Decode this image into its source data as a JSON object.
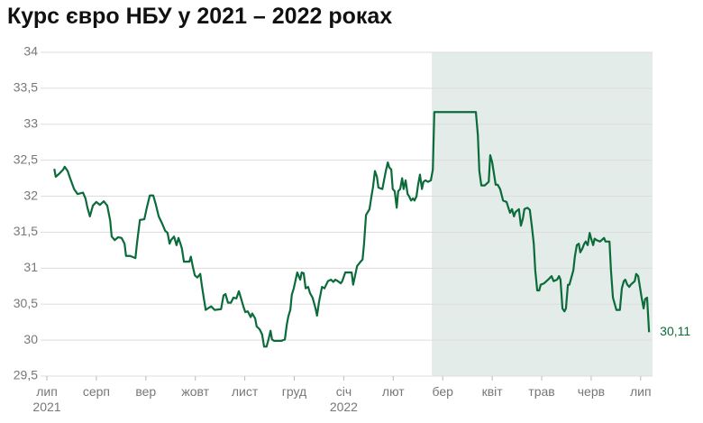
{
  "chart_data": {
    "type": "line",
    "title": "Курс євро НБУ у 2021 – 2022 роках",
    "color": "#0b6b3a",
    "grid": true,
    "shaded_xrange": [
      7.78,
      12.24
    ],
    "shade_color": "#e3ece8",
    "end_label": "30,11",
    "xlim": [
      0,
      12.24
    ],
    "ylim": [
      29.5,
      34
    ],
    "yticks": [
      {
        "value": 29.5,
        "label": "29,5"
      },
      30,
      {
        "value": 30.5,
        "label": "30,5"
      },
      31,
      {
        "value": 31.5,
        "label": "31,5"
      },
      32,
      {
        "value": 32.5,
        "label": "32,5"
      },
      33,
      {
        "value": 33.5,
        "label": "33,5"
      },
      34
    ],
    "xticks": [
      {
        "value": 0,
        "label": "лип 2021"
      },
      {
        "value": 1,
        "label": "серп"
      },
      {
        "value": 2,
        "label": "вер"
      },
      {
        "value": 3,
        "label": "жовт"
      },
      {
        "value": 4,
        "label": "лист"
      },
      {
        "value": 5,
        "label": "груд"
      },
      {
        "value": 6,
        "label": "січ 2022"
      },
      {
        "value": 7,
        "label": "лют"
      },
      {
        "value": 8,
        "label": "бер"
      },
      {
        "value": 9,
        "label": "квіт"
      },
      {
        "value": 10,
        "label": "трав"
      },
      {
        "value": 11,
        "label": "черв"
      },
      {
        "value": 12,
        "label": "лип"
      }
    ],
    "x": [
      0.15,
      0.18,
      0.26,
      0.33,
      0.36,
      0.42,
      0.47,
      0.55,
      0.62,
      0.73,
      0.78,
      0.82,
      0.87,
      0.93,
      1.0,
      1.07,
      1.15,
      1.22,
      1.28,
      1.31,
      1.37,
      1.44,
      1.51,
      1.57,
      1.6,
      1.68,
      1.79,
      1.82,
      1.88,
      1.97,
      2.02,
      2.08,
      2.15,
      2.2,
      2.26,
      2.33,
      2.39,
      2.44,
      2.48,
      2.51,
      2.57,
      2.62,
      2.66,
      2.7,
      2.73,
      2.77,
      2.88,
      2.91,
      2.95,
      2.99,
      3.04,
      3.1,
      3.13,
      3.17,
      3.21,
      3.32,
      3.39,
      3.52,
      3.57,
      3.61,
      3.66,
      3.72,
      3.77,
      3.83,
      3.88,
      3.92,
      3.97,
      4.01,
      4.06,
      4.12,
      4.15,
      4.21,
      4.24,
      4.3,
      4.35,
      4.39,
      4.44,
      4.48,
      4.52,
      4.55,
      4.59,
      4.74,
      4.81,
      4.85,
      4.88,
      4.92,
      4.95,
      4.99,
      5.06,
      5.12,
      5.15,
      5.19,
      5.23,
      5.28,
      5.32,
      5.37,
      5.43,
      5.46,
      5.5,
      5.56,
      5.61,
      5.68,
      5.74,
      5.79,
      5.83,
      5.88,
      5.94,
      5.97,
      6.03,
      6.16,
      6.19,
      6.27,
      6.34,
      6.38,
      6.41,
      6.45,
      6.52,
      6.56,
      6.59,
      6.63,
      6.67,
      6.7,
      6.78,
      6.85,
      6.89,
      6.92,
      6.96,
      6.99,
      7.03,
      7.07,
      7.1,
      7.14,
      7.18,
      7.21,
      7.25,
      7.29,
      7.32,
      7.36,
      7.4,
      7.43,
      7.47,
      7.5,
      7.54,
      7.58,
      7.61,
      7.65,
      7.7,
      7.76,
      7.8,
      7.83,
      8.67,
      8.71,
      8.74,
      8.78,
      8.85,
      8.93,
      8.96,
      9.0,
      9.07,
      9.11,
      9.16,
      9.22,
      9.29,
      9.36,
      9.4,
      9.44,
      9.47,
      9.54,
      9.58,
      9.62,
      9.65,
      9.71,
      9.76,
      9.8,
      9.84,
      9.87,
      9.91,
      9.95,
      9.98,
      10.05,
      10.13,
      10.2,
      10.24,
      10.31,
      10.35,
      10.38,
      10.42,
      10.46,
      10.49,
      10.53,
      10.56,
      10.6,
      10.64,
      10.67,
      10.71,
      10.75,
      10.78,
      10.82,
      10.86,
      10.89,
      10.93,
      10.97,
      11.0,
      11.04,
      11.07,
      11.11,
      11.18,
      11.26,
      11.29,
      11.37,
      11.4,
      11.44,
      11.51,
      11.58,
      11.62,
      11.66,
      11.69,
      11.73,
      11.77,
      11.8,
      11.88,
      11.91,
      11.95,
      11.99,
      12.02,
      12.06,
      12.09,
      12.13,
      12.17
    ],
    "values": [
      32.38,
      32.27,
      32.32,
      32.37,
      32.41,
      32.35,
      32.25,
      32.1,
      32.03,
      32.05,
      31.97,
      31.84,
      31.72,
      31.87,
      31.92,
      31.88,
      31.93,
      31.87,
      31.66,
      31.44,
      31.39,
      31.43,
      31.42,
      31.34,
      31.17,
      31.17,
      31.14,
      31.34,
      31.67,
      31.68,
      31.84,
      32.01,
      32.01,
      31.89,
      31.72,
      31.62,
      31.52,
      31.49,
      31.34,
      31.39,
      31.44,
      31.32,
      31.42,
      31.34,
      31.27,
      31.09,
      31.09,
      31.16,
      31.02,
      30.9,
      30.87,
      30.92,
      30.77,
      30.59,
      30.42,
      30.47,
      30.42,
      30.43,
      30.62,
      30.64,
      30.52,
      30.52,
      30.59,
      30.58,
      30.68,
      30.59,
      30.47,
      30.39,
      30.4,
      30.32,
      30.37,
      30.3,
      30.19,
      30.15,
      30.08,
      29.91,
      29.91,
      30.01,
      30.13,
      30.01,
      29.99,
      29.99,
      30.01,
      30.22,
      30.33,
      30.42,
      30.63,
      30.72,
      30.94,
      30.84,
      30.94,
      30.93,
      30.72,
      30.74,
      30.65,
      30.59,
      30.44,
      30.34,
      30.53,
      30.74,
      30.72,
      30.82,
      30.84,
      30.81,
      30.84,
      30.82,
      30.79,
      30.82,
      30.94,
      30.94,
      30.77,
      31.03,
      31.09,
      31.12,
      31.34,
      31.74,
      31.82,
      32.0,
      32.12,
      32.35,
      32.27,
      32.12,
      32.1,
      32.35,
      32.47,
      32.4,
      32.37,
      32.1,
      32.07,
      31.84,
      32.07,
      32.1,
      32.25,
      32.1,
      32.22,
      32.03,
      32.0,
      31.94,
      31.97,
      31.94,
      32.0,
      32.15,
      32.3,
      32.1,
      32.2,
      32.22,
      32.2,
      32.22,
      32.37,
      33.17,
      33.17,
      32.85,
      32.35,
      32.15,
      32.15,
      32.2,
      32.57,
      32.47,
      32.16,
      32.16,
      32.1,
      31.94,
      31.92,
      31.77,
      31.82,
      31.72,
      31.78,
      31.82,
      31.59,
      31.69,
      31.82,
      31.84,
      31.81,
      31.59,
      31.34,
      30.97,
      30.69,
      30.69,
      30.77,
      30.79,
      30.84,
      30.89,
      30.82,
      30.84,
      30.89,
      30.84,
      30.44,
      30.4,
      30.44,
      30.77,
      30.77,
      30.87,
      30.97,
      31.16,
      31.32,
      31.34,
      31.22,
      31.27,
      31.34,
      31.37,
      31.32,
      31.49,
      31.41,
      31.32,
      31.41,
      31.39,
      31.37,
      31.42,
      31.37,
      31.37,
      30.97,
      30.59,
      30.42,
      30.42,
      30.72,
      30.82,
      30.84,
      30.77,
      30.74,
      30.77,
      30.82,
      30.92,
      30.89,
      30.72,
      30.59,
      30.44,
      30.57,
      30.59,
      30.11
    ]
  }
}
